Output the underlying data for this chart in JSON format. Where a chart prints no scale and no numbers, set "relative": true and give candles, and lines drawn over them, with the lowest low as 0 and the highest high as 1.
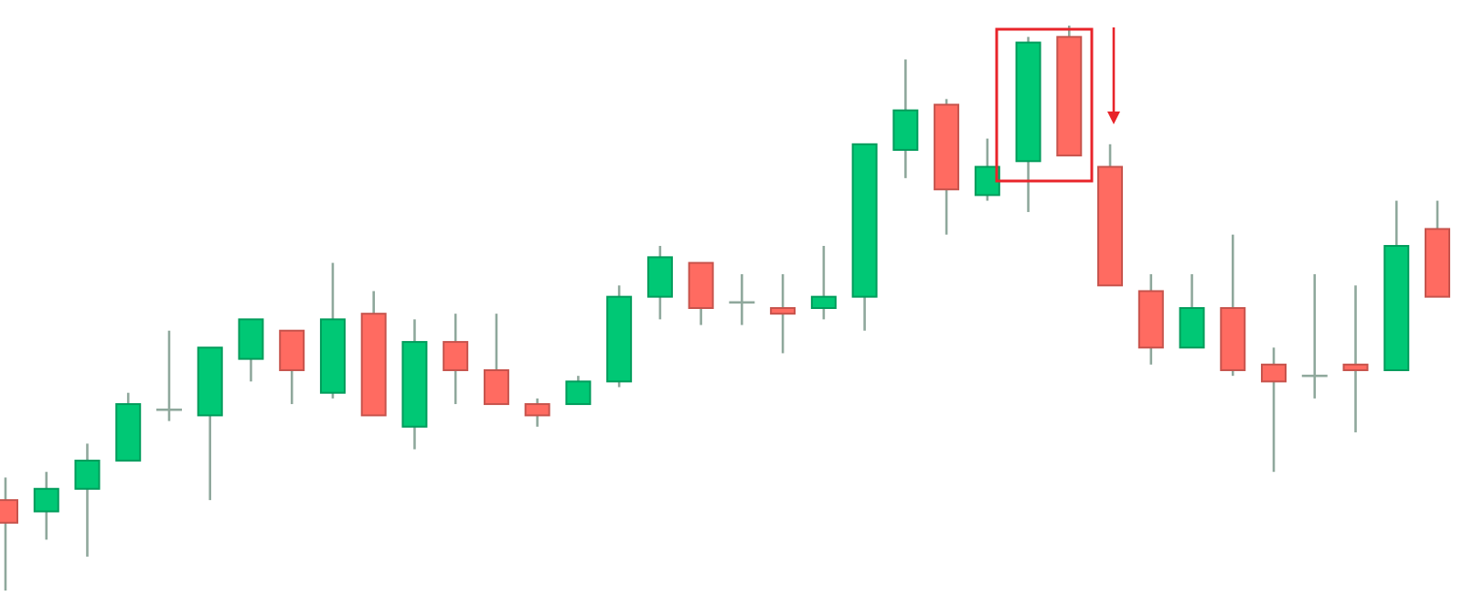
{
  "chart_data": {
    "type": "candlestick",
    "relative": true,
    "categories": [
      null,
      null,
      null,
      null,
      null,
      null,
      null,
      null,
      null,
      null,
      null,
      null,
      null,
      null,
      null,
      null,
      null,
      null,
      null,
      null,
      null,
      null,
      null,
      null,
      null,
      null,
      null,
      null,
      null,
      null,
      null,
      null,
      null,
      null,
      null,
      null
    ],
    "ohlc": [
      [
        0.16,
        0.2,
        0,
        0.12
      ],
      [
        0.14,
        0.21,
        0.09,
        0.18
      ],
      [
        0.18,
        0.26,
        0.06,
        0.23
      ],
      [
        0.23,
        0.35,
        0.23,
        0.33
      ],
      [
        0.32,
        0.46,
        0.3,
        0.32
      ],
      [
        0.31,
        0.43,
        0.16,
        0.43
      ],
      [
        0.41,
        0.48,
        0.37,
        0.48
      ],
      [
        0.46,
        0.46,
        0.33,
        0.39
      ],
      [
        0.35,
        0.58,
        0.34,
        0.48
      ],
      [
        0.49,
        0.53,
        0.31,
        0.31
      ],
      [
        0.29,
        0.48,
        0.25,
        0.44
      ],
      [
        0.44,
        0.49,
        0.33,
        0.39
      ],
      [
        0.39,
        0.49,
        0.33,
        0.33
      ],
      [
        0.33,
        0.34,
        0.29,
        0.31
      ],
      [
        0.33,
        0.38,
        0.33,
        0.37
      ],
      [
        0.37,
        0.54,
        0.36,
        0.52
      ],
      [
        0.52,
        0.61,
        0.48,
        0.59
      ],
      [
        0.58,
        0.58,
        0.47,
        0.5
      ],
      [
        0.51,
        0.56,
        0.47,
        0.51
      ],
      [
        0.5,
        0.56,
        0.42,
        0.49
      ],
      [
        0.5,
        0.61,
        0.48,
        0.52
      ],
      [
        0.52,
        0.79,
        0.46,
        0.79
      ],
      [
        0.78,
        0.94,
        0.73,
        0.85
      ],
      [
        0.86,
        0.87,
        0.63,
        0.71
      ],
      [
        0.7,
        0.8,
        0.69,
        0.75
      ],
      [
        0.76,
        0.98,
        0.67,
        0.97
      ],
      [
        0.98,
        1,
        0.77,
        0.77
      ],
      [
        0.75,
        0.79,
        0.54,
        0.54
      ],
      [
        0.53,
        0.56,
        0.4,
        0.43
      ],
      [
        0.43,
        0.56,
        0.43,
        0.5
      ],
      [
        0.5,
        0.63,
        0.38,
        0.39
      ],
      [
        0.4,
        0.43,
        0.21,
        0.37
      ],
      [
        0.38,
        0.56,
        0.34,
        0.38
      ],
      [
        0.4,
        0.54,
        0.28,
        0.39
      ],
      [
        0.39,
        0.69,
        0.39,
        0.61
      ],
      [
        0.64,
        0.69,
        0.52,
        0.52
      ]
    ],
    "colors": [
      "#ff6b61",
      "#00c875",
      "#00c875",
      "#00c875",
      "#8fa89c",
      "#00c875",
      "#00c875",
      "#ff6b61",
      "#00c875",
      "#ff6b61",
      "#00c875",
      "#ff6b61",
      "#ff6b61",
      "#ff6b61",
      "#00c875",
      "#00c875",
      "#00c875",
      "#ff6b61",
      "#8fa89c",
      "#ff6b61",
      "#00c875",
      "#00c875",
      "#00c875",
      "#ff6b61",
      "#00c875",
      "#00c875",
      "#ff6b61",
      "#ff6b61",
      "#ff6b61",
      "#00c875",
      "#ff6b61",
      "#ff6b61",
      "#8fa89c",
      "#ff6b61",
      "#00c875",
      "#ff6b61"
    ]
  }
}
